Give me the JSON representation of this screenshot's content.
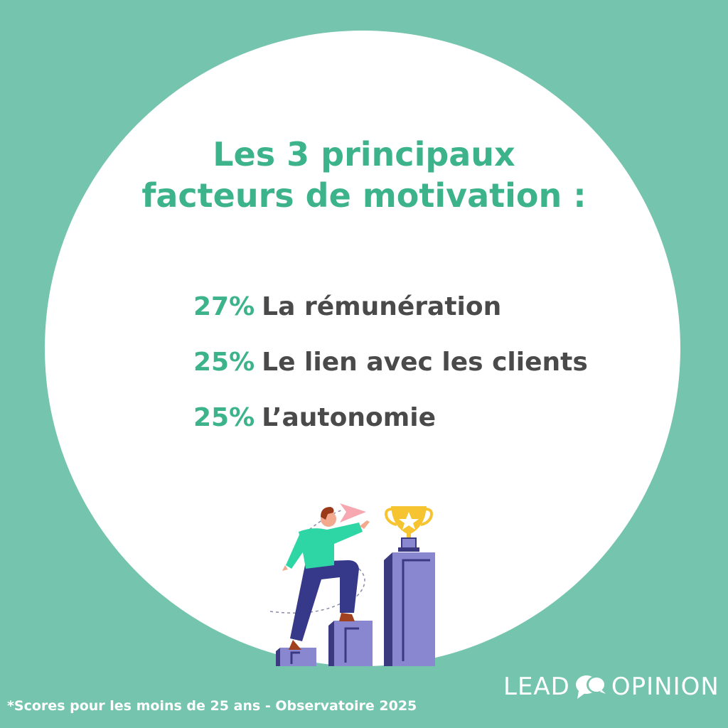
{
  "title": {
    "line1": "Les 3 principaux",
    "line2": "facteurs de motivation :"
  },
  "factors": [
    {
      "percent": "27%",
      "label": "La rémunération"
    },
    {
      "percent": "25%",
      "label": "Le lien avec les clients"
    },
    {
      "percent": "25%",
      "label": "L’autonomie"
    }
  ],
  "footnote": "*Scores pour les moins de 25 ans - Observatoire 2025",
  "logo": {
    "left": "LEAD",
    "right": "OPINION",
    "icon": "speech-bubbles-icon"
  },
  "colors": {
    "background": "#75c4ad",
    "accent": "#3db38c",
    "text": "#4a4a4a",
    "podium": "#8a87d1",
    "trophy": "#f6c431"
  }
}
